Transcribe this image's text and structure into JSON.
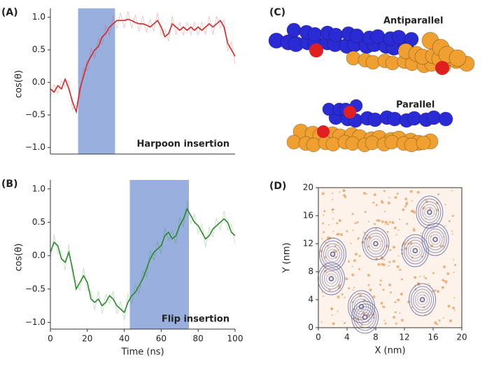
{
  "chart_data": [
    {
      "type": "line",
      "panel_label": "(A)",
      "ylabel": "cos(θ)",
      "annotation": "Harpoon insertion",
      "x": [
        0,
        2,
        4,
        6,
        8,
        10,
        12,
        14,
        16,
        18,
        20,
        22,
        24,
        26,
        28,
        30,
        32,
        34,
        36,
        38,
        40,
        42,
        44,
        46,
        48,
        50,
        52,
        54,
        56,
        58,
        60,
        62,
        64,
        66,
        68,
        70,
        72,
        74,
        76,
        78,
        80,
        82,
        84,
        86,
        88,
        90,
        92,
        94,
        96,
        98,
        100
      ],
      "values": [
        -0.1,
        -0.15,
        -0.05,
        -0.1,
        0.05,
        -0.1,
        -0.3,
        -0.45,
        -0.1,
        0.1,
        0.3,
        0.4,
        0.5,
        0.55,
        0.7,
        0.75,
        0.85,
        0.9,
        0.95,
        0.95,
        0.95,
        0.97,
        0.95,
        0.92,
        0.9,
        0.9,
        0.88,
        0.85,
        0.9,
        0.95,
        0.85,
        0.7,
        0.75,
        0.9,
        0.85,
        0.8,
        0.85,
        0.8,
        0.85,
        0.8,
        0.85,
        0.8,
        0.85,
        0.9,
        0.85,
        0.9,
        0.95,
        0.85,
        0.6,
        0.5,
        0.4
      ],
      "color": "#d62728",
      "shade": [
        15,
        35
      ],
      "shade_color": "#7f9bd6",
      "xlim": [
        0,
        100
      ],
      "ylim": [
        -1.1,
        1.05
      ],
      "yticks": [
        {
          "value": -1,
          "label": "−1.0"
        },
        {
          "value": -0.5,
          "label": "−0.5"
        },
        {
          "value": 0,
          "label": "0.0"
        },
        {
          "value": 0.5,
          "label": "0.5"
        },
        {
          "value": 1,
          "label": "1.0"
        }
      ]
    },
    {
      "type": "line",
      "panel_label": "(B)",
      "ylabel": "cos(θ)",
      "annotation": "Flip insertion",
      "xlabel": "Time (ns)",
      "x": [
        0,
        2,
        4,
        6,
        8,
        10,
        12,
        14,
        16,
        18,
        20,
        22,
        24,
        26,
        28,
        30,
        32,
        34,
        36,
        38,
        40,
        42,
        44,
        46,
        48,
        50,
        52,
        54,
        56,
        58,
        60,
        62,
        64,
        66,
        68,
        70,
        72,
        74,
        76,
        78,
        80,
        82,
        84,
        86,
        88,
        90,
        92,
        94,
        96,
        98,
        100
      ],
      "values": [
        0.05,
        0.2,
        0.15,
        -0.05,
        -0.1,
        0.05,
        -0.2,
        -0.5,
        -0.4,
        -0.3,
        -0.4,
        -0.65,
        -0.7,
        -0.65,
        -0.75,
        -0.7,
        -0.6,
        -0.65,
        -0.75,
        -0.8,
        -0.85,
        -0.7,
        -0.6,
        -0.55,
        -0.45,
        -0.35,
        -0.2,
        -0.05,
        0.05,
        0.1,
        0.15,
        0.3,
        0.35,
        0.25,
        0.3,
        0.45,
        0.55,
        0.7,
        0.6,
        0.5,
        0.45,
        0.35,
        0.25,
        0.3,
        0.4,
        0.45,
        0.5,
        0.55,
        0.5,
        0.35,
        0.3
      ],
      "color": "#2a8a2a",
      "shade": [
        43,
        75
      ],
      "shade_color": "#7f9bd6",
      "xlim": [
        0,
        100
      ],
      "ylim": [
        -1.1,
        1.05
      ],
      "xticks": [
        0,
        20,
        40,
        60,
        80,
        100
      ],
      "yticks": [
        {
          "value": -1,
          "label": "−1.0"
        },
        {
          "value": -0.5,
          "label": "−0.5"
        },
        {
          "value": 0,
          "label": "0.0"
        },
        {
          "value": 0.5,
          "label": "0.5"
        },
        {
          "value": 1,
          "label": "1.0"
        }
      ]
    },
    {
      "type": "contour",
      "panel_label": "(D)",
      "xlabel": "X (nm)",
      "ylabel": "Y (nm)",
      "color": "#5a64a8",
      "peaks": {
        "x": [
          1.8,
          2.0,
          6.0,
          6.5,
          8.0,
          13.5,
          14.5,
          15.5,
          16.3
        ],
        "y": [
          7.0,
          10.5,
          3.0,
          1.5,
          12.0,
          11.0,
          4.0,
          16.5,
          12.6
        ]
      },
      "xlim": [
        0,
        20
      ],
      "ylim": [
        0,
        20
      ],
      "xticks": [
        0,
        4,
        8,
        12,
        16,
        20
      ],
      "yticks": [
        0,
        4,
        8,
        12,
        16,
        20
      ]
    }
  ],
  "image_panel": {
    "panel_label": "(C)",
    "captions": [
      "Antiparallel",
      "Parallel"
    ]
  }
}
